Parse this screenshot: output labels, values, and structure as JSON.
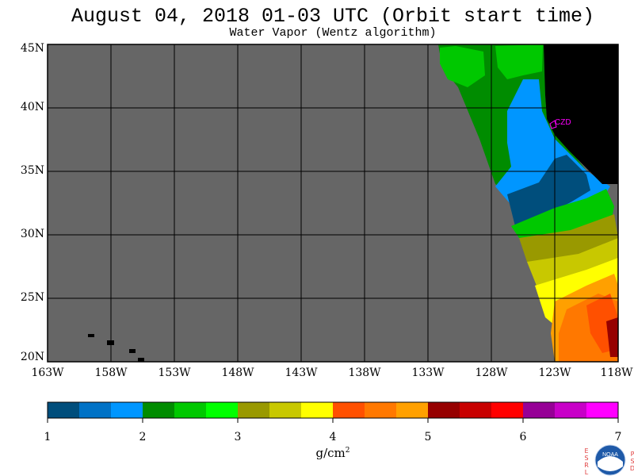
{
  "title": "August 04, 2018  01-03 UTC  (Orbit start time)",
  "subtitle": "Water Vapor (Wentz algorithm)",
  "map": {
    "lat_ticks": [
      "45N",
      "40N",
      "35N",
      "30N",
      "25N",
      "20N"
    ],
    "lon_ticks": [
      "163W",
      "158W",
      "153W",
      "148W",
      "143W",
      "138W",
      "133W",
      "128W",
      "123W",
      "118W"
    ],
    "lat_range": [
      20,
      45
    ],
    "lon_range": [
      -163,
      -118
    ],
    "grid": true,
    "station_label": "CZD",
    "colors": {
      "no_data": "#666666",
      "land": "#000000",
      "station": "#ff00ff"
    }
  },
  "colorbar": {
    "tick_labels": [
      "1",
      "2",
      "3",
      "4",
      "5",
      "6",
      "7"
    ],
    "range": [
      1,
      7
    ],
    "units_base": "g/cm",
    "units_exp": "2",
    "colors": [
      "#004e7c",
      "#0072c6",
      "#0096ff",
      "#008c00",
      "#00c800",
      "#00ff00",
      "#999900",
      "#c8c800",
      "#ffff00",
      "#ff5000",
      "#ff7800",
      "#ffa000",
      "#960000",
      "#c80000",
      "#ff0000",
      "#960096",
      "#c800c8",
      "#ff00ff"
    ]
  },
  "logo": {
    "left_letters": [
      "E",
      "S",
      "R",
      "L"
    ],
    "right_letters": [
      "P",
      "S",
      "D"
    ],
    "text": "NOAA"
  }
}
